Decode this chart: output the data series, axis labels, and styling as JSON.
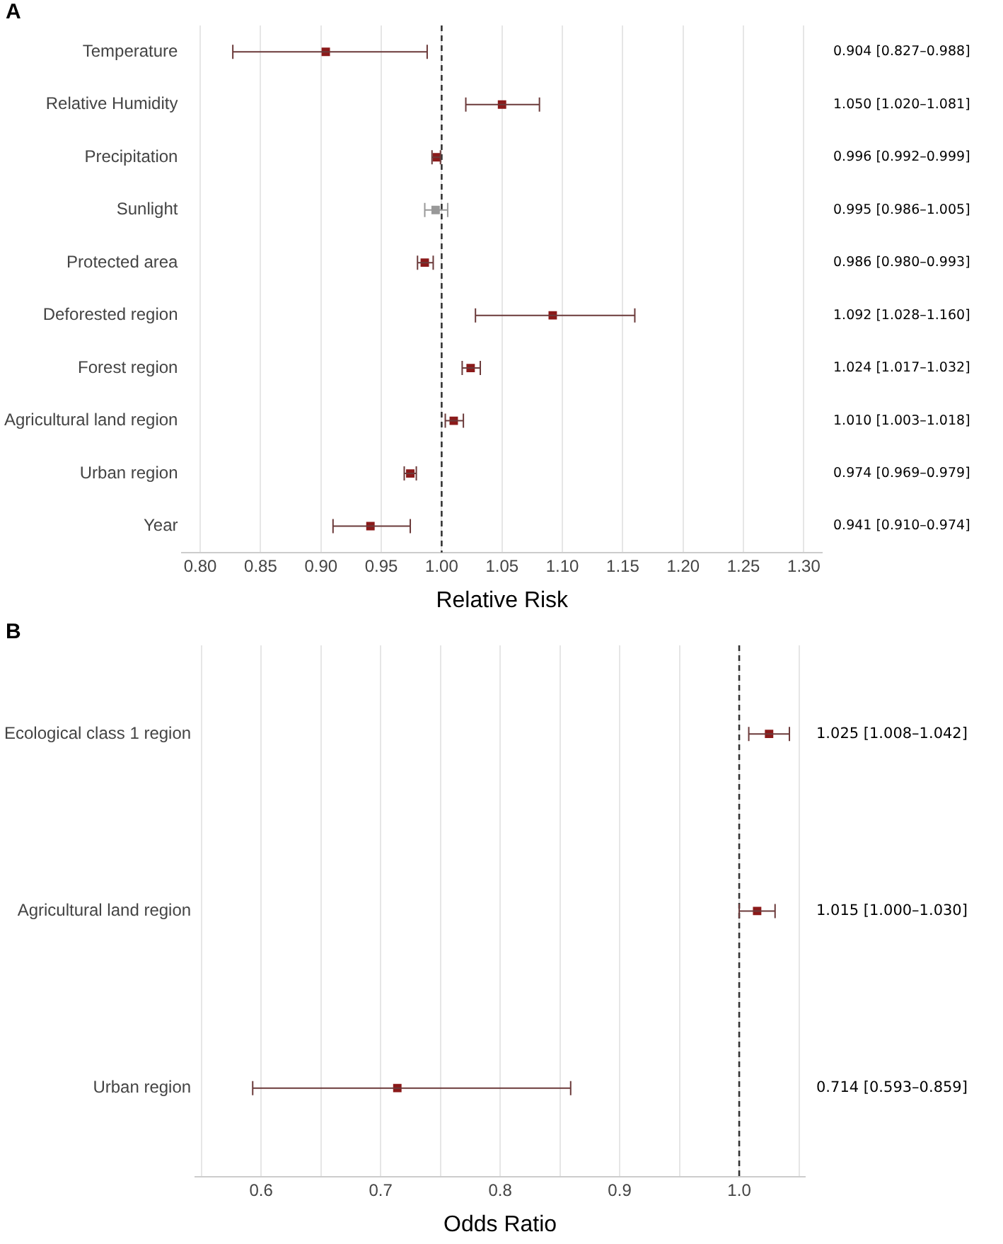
{
  "chart_data": [
    {
      "type": "scatter",
      "title": "A",
      "orientation": "horizontal",
      "xlabel": "Relative Risk",
      "categories": [
        "Temperature",
        "Relative Humidity",
        "Precipitation",
        "Sunlight",
        "Protected area",
        "Deforested region",
        "Forest region",
        "Agricultural land region",
        "Urban region",
        "Year"
      ],
      "values": [
        0.904,
        1.05,
        0.996,
        0.995,
        0.986,
        1.092,
        1.024,
        1.01,
        0.974,
        0.941
      ],
      "errors": [
        [
          0.827,
          0.988
        ],
        [
          1.02,
          1.081
        ],
        [
          0.992,
          0.999
        ],
        [
          0.986,
          1.005
        ],
        [
          0.98,
          0.993
        ],
        [
          1.028,
          1.16
        ],
        [
          1.017,
          1.032
        ],
        [
          1.003,
          1.018
        ],
        [
          0.969,
          0.979
        ],
        [
          0.91,
          0.974
        ]
      ],
      "value_labels": [
        "0.904 [0.827–0.988]",
        "1.050 [1.020–1.081]",
        "0.996 [0.992–0.999]",
        "0.995 [0.986–1.005]",
        "0.986 [0.980–0.993]",
        "1.092 [1.028–1.160]",
        "1.024 [1.017–1.032]",
        "1.010 [1.003–1.018]",
        "0.974 [0.969–0.979]",
        "0.941 [0.910–0.974]"
      ],
      "colors": [
        "#8b1a1a",
        "#8b1a1a",
        "#8b1a1a",
        "#999999",
        "#8b1a1a",
        "#8b1a1a",
        "#8b1a1a",
        "#8b1a1a",
        "#8b1a1a",
        "#8b1a1a"
      ],
      "xlim": [
        0.785,
        1.315
      ],
      "xticks": [
        {
          "value": 0.8,
          "label": "0.80"
        },
        {
          "value": 0.85,
          "label": "0.85"
        },
        {
          "value": 0.9,
          "label": "0.90"
        },
        {
          "value": 0.95,
          "label": "0.95"
        },
        {
          "value": 1,
          "label": "1.00"
        },
        {
          "value": 1.05,
          "label": "1.05"
        },
        {
          "value": 1.1,
          "label": "1.10"
        },
        {
          "value": 1.15,
          "label": "1.15"
        },
        {
          "value": 1.2,
          "label": "1.20"
        },
        {
          "value": 1.25,
          "label": "1.25"
        },
        {
          "value": 1.3,
          "label": "1.30"
        }
      ],
      "grid": "x",
      "marker": "square",
      "legend": false,
      "ref_lines": [
        {
          "axis": "x",
          "value": 1,
          "line_style": "dashed",
          "color": "#333333"
        }
      ]
    },
    {
      "type": "scatter",
      "title": "B",
      "orientation": "horizontal",
      "xlabel": "Odds Ratio",
      "categories": [
        "Ecological class 1 region",
        "Agricultural land region",
        "Urban region"
      ],
      "values": [
        1.025,
        1.015,
        0.714
      ],
      "errors": [
        [
          1.008,
          1.042
        ],
        [
          1.0,
          1.03
        ],
        [
          0.593,
          0.859
        ]
      ],
      "value_labels": [
        "1.025 [1.008–1.042]",
        "1.015 [1.000–1.030]",
        "0.714 [0.593–0.859]"
      ],
      "colors": [
        "#8b1a1a",
        "#8b1a1a",
        "#8b1a1a"
      ],
      "xlim": [
        0.545,
        1.055
      ],
      "xticks": [
        {
          "value": 0.55,
          "label": null
        },
        {
          "value": 0.6,
          "label": "0.6"
        },
        {
          "value": 0.65,
          "label": null
        },
        {
          "value": 0.7,
          "label": "0.7"
        },
        {
          "value": 0.75,
          "label": null
        },
        {
          "value": 0.8,
          "label": "0.8"
        },
        {
          "value": 0.85,
          "label": null
        },
        {
          "value": 0.9,
          "label": "0.9"
        },
        {
          "value": 0.95,
          "label": null
        },
        {
          "value": 1,
          "label": "1.0"
        },
        {
          "value": 1.05,
          "label": null
        }
      ],
      "grid": "x",
      "marker": "square",
      "legend": false,
      "ref_lines": [
        {
          "axis": "x",
          "value": 1,
          "line_style": "dashed",
          "color": "#333333"
        }
      ]
    }
  ]
}
